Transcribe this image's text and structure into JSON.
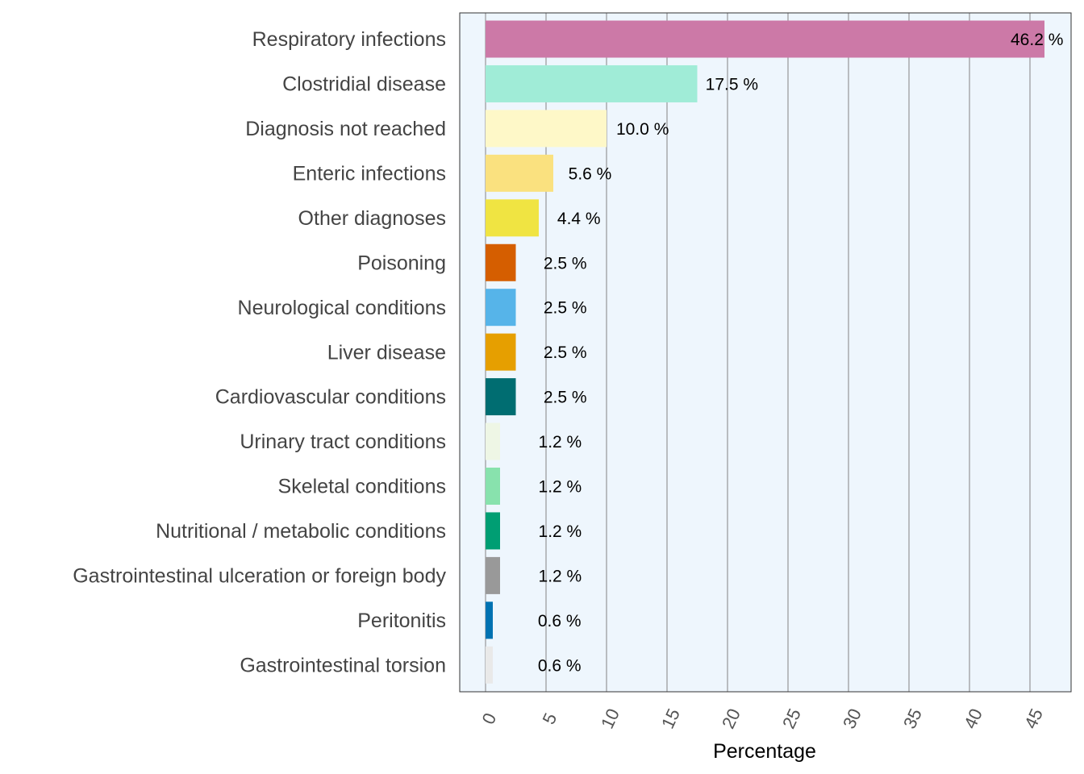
{
  "chart_data": {
    "type": "bar",
    "orientation": "horizontal",
    "title": "",
    "xlabel": "Percentage",
    "ylabel": "",
    "xlim": [
      0,
      46.2
    ],
    "x_ticks": [
      0,
      5,
      10,
      15,
      20,
      25,
      30,
      35,
      40,
      45
    ],
    "grid": "vertical",
    "plot_background": "#eef6fd",
    "categories": [
      "Respiratory infections",
      "Clostridial disease",
      "Diagnosis not reached",
      "Enteric infections",
      "Other diagnoses",
      "Poisoning",
      "Neurological conditions",
      "Liver disease",
      "Cardiovascular conditions",
      "Urinary tract conditions",
      "Skeletal conditions",
      "Nutritional / metabolic conditions",
      "Gastrointestinal ulceration or foreign body",
      "Peritonitis",
      "Gastrointestinal torsion"
    ],
    "values": [
      46.2,
      17.5,
      10.0,
      5.6,
      4.4,
      2.5,
      2.5,
      2.5,
      2.5,
      1.2,
      1.2,
      1.2,
      1.2,
      0.6,
      0.6
    ],
    "value_labels": [
      "46.2 %",
      "17.5 %",
      "10.0 %",
      "5.6 %",
      "4.4 %",
      "2.5 %",
      "2.5 %",
      "2.5 %",
      "2.5 %",
      "1.2 %",
      "1.2 %",
      "1.2 %",
      "1.2 %",
      "0.6 %",
      "0.6 %"
    ],
    "colors": [
      "#cc79a7",
      "#a0ecd7",
      "#fef8c8",
      "#fae17f",
      "#f0e442",
      "#d55e00",
      "#56b4e9",
      "#e69f00",
      "#006d71",
      "#eef6e5",
      "#88e2ad",
      "#009e73",
      "#999999",
      "#0072b2",
      "#e9e9e9"
    ]
  }
}
